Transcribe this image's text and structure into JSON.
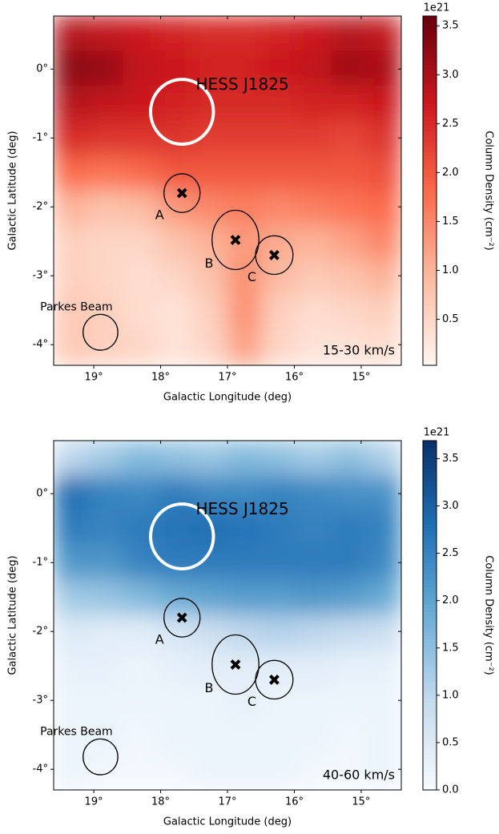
{
  "chart_data": [
    {
      "type": "heatmap",
      "xlabel": "Galactic Longitude (deg)",
      "ylabel": "Galactic Latitude (deg)",
      "xlim": [
        19.6,
        14.4
      ],
      "ylim": [
        -4.3,
        0.77
      ],
      "xticks": [
        {
          "value": 19,
          "label": "19°"
        },
        {
          "value": 18,
          "label": "18°"
        },
        {
          "value": 17,
          "label": "17°"
        },
        {
          "value": 16,
          "label": "16°"
        },
        {
          "value": 15,
          "label": "15°"
        }
      ],
      "yticks": [
        {
          "value": 0,
          "label": "0°"
        },
        {
          "value": -1,
          "label": "-1°"
        },
        {
          "value": -2,
          "label": "-2°"
        },
        {
          "value": -3,
          "label": "-3°"
        },
        {
          "value": -4,
          "label": "-4°"
        }
      ],
      "z": [
        [
          2.9,
          2.8,
          2.7,
          2.6,
          2.5,
          2.5,
          2.6,
          2.7,
          2.9,
          2.8
        ],
        [
          3.3,
          3.2,
          2.8,
          2.7,
          2.6,
          2.6,
          2.7,
          2.8,
          3.1,
          3.0
        ],
        [
          2.9,
          2.8,
          2.7,
          2.6,
          2.5,
          2.5,
          2.5,
          2.6,
          2.6,
          2.7
        ],
        [
          2.5,
          2.4,
          2.4,
          2.4,
          2.3,
          2.3,
          2.3,
          2.3,
          2.2,
          2.4
        ],
        [
          1.8,
          1.7,
          1.8,
          2.0,
          2.0,
          2.0,
          2.0,
          2.0,
          2.0,
          2.1
        ],
        [
          1.0,
          0.8,
          0.9,
          1.3,
          1.5,
          1.6,
          1.5,
          1.6,
          1.7,
          1.8
        ],
        [
          0.6,
          0.5,
          0.5,
          0.8,
          1.0,
          1.3,
          1.1,
          1.0,
          1.2,
          1.5
        ],
        [
          0.6,
          0.5,
          0.4,
          0.5,
          0.8,
          1.4,
          0.9,
          0.7,
          0.8,
          1.0
        ],
        [
          0.7,
          0.6,
          0.4,
          0.3,
          0.6,
          1.4,
          0.6,
          0.4,
          0.5,
          0.6
        ],
        [
          0.7,
          0.6,
          0.5,
          0.3,
          0.5,
          1.2,
          0.5,
          0.3,
          0.3,
          0.4
        ]
      ],
      "colors": [
        "#fff5f0",
        "#fcbba1",
        "#fb6a4a",
        "#cb181d",
        "#67000d"
      ],
      "clim": [
        0.03,
        3.6
      ],
      "cticks": [
        0.5,
        {
          "value": 1,
          "label": "1.0"
        },
        1.5,
        {
          "value": 2,
          "label": "2.0"
        },
        2.5,
        {
          "value": 3,
          "label": "3.0"
        },
        3.5
      ],
      "colorbar_label": "Column Density (cm⁻²)",
      "colorbar_offset": "1e21",
      "annotation": "15-30 km/s",
      "regions": [
        {
          "label": "HESS J1825",
          "x": 17.68,
          "y": -0.62,
          "rx": 0.47,
          "ry": 0.47,
          "color": "#ffffff"
        },
        {
          "label": "A",
          "x": 17.68,
          "y": -1.8,
          "rx": 0.27,
          "ry": 0.28,
          "color": "#000000",
          "marker": true
        },
        {
          "label": "B",
          "x": 16.88,
          "y": -2.48,
          "rx": 0.35,
          "ry": 0.43,
          "color": "#000000",
          "marker": true
        },
        {
          "label": "C",
          "x": 16.3,
          "y": -2.7,
          "rx": 0.28,
          "ry": 0.28,
          "color": "#000000",
          "marker": true
        },
        {
          "label": "Parkes Beam",
          "x": 18.9,
          "y": -3.82,
          "rx": 0.26,
          "ry": 0.26,
          "color": "#000000"
        }
      ]
    },
    {
      "type": "heatmap",
      "xlabel": "Galactic Longitude (deg)",
      "ylabel": "Galactic Latitude (deg)",
      "xlim": [
        19.6,
        14.4
      ],
      "ylim": [
        -4.3,
        0.77
      ],
      "xticks": [
        {
          "value": 19,
          "label": "19°"
        },
        {
          "value": 18,
          "label": "18°"
        },
        {
          "value": 17,
          "label": "17°"
        },
        {
          "value": 16,
          "label": "16°"
        },
        {
          "value": 15,
          "label": "15°"
        }
      ],
      "yticks": [
        {
          "value": 0,
          "label": "0°"
        },
        {
          "value": -1,
          "label": "-1°"
        },
        {
          "value": -2,
          "label": "-2°"
        },
        {
          "value": -3,
          "label": "-3°"
        },
        {
          "value": -4,
          "label": "-4°"
        }
      ],
      "z": [
        [
          1.0,
          1.3,
          1.6,
          1.5,
          1.4,
          1.6,
          1.5,
          1.3,
          1.5,
          1.2
        ],
        [
          2.8,
          2.5,
          2.4,
          2.6,
          2.4,
          2.4,
          2.5,
          2.4,
          2.3,
          2.3
        ],
        [
          2.6,
          2.5,
          2.6,
          2.7,
          2.8,
          2.7,
          2.6,
          2.5,
          2.6,
          2.5
        ],
        [
          2.2,
          2.2,
          2.5,
          2.6,
          2.6,
          2.6,
          2.6,
          2.6,
          2.6,
          2.4
        ],
        [
          1.3,
          1.4,
          1.6,
          1.9,
          2.0,
          2.1,
          2.1,
          2.2,
          2.1,
          1.9
        ],
        [
          0.5,
          0.4,
          0.4,
          0.6,
          0.8,
          1.0,
          1.1,
          1.0,
          0.9,
          0.8
        ],
        [
          0.3,
          0.3,
          0.2,
          0.3,
          0.4,
          0.4,
          0.4,
          0.4,
          0.3,
          0.3
        ],
        [
          0.2,
          0.2,
          0.2,
          0.2,
          0.2,
          0.3,
          0.2,
          0.2,
          0.2,
          0.2
        ],
        [
          0.2,
          0.2,
          0.1,
          0.2,
          0.2,
          0.2,
          0.2,
          0.2,
          0.1,
          0.2
        ],
        [
          0.2,
          0.1,
          0.1,
          0.1,
          0.2,
          0.2,
          0.2,
          0.1,
          0.1,
          0.2
        ]
      ],
      "colors": [
        "#f7fbff",
        "#c6dbef",
        "#6baed6",
        "#2171b5",
        "#08306b"
      ],
      "clim": [
        0,
        3.69
      ],
      "cticks": [
        {
          "value": 0,
          "label": "0.0"
        },
        0.5,
        {
          "value": 1,
          "label": "1.0"
        },
        1.5,
        {
          "value": 2,
          "label": "2.0"
        },
        2.5,
        {
          "value": 3,
          "label": "3.0"
        },
        3.5
      ],
      "colorbar_label": "Column Density (cm⁻²)",
      "colorbar_offset": "1e21",
      "annotation": "40-60 km/s",
      "regions": [
        {
          "label": "HESS J1825",
          "x": 17.68,
          "y": -0.62,
          "rx": 0.47,
          "ry": 0.47,
          "color": "#ffffff"
        },
        {
          "label": "A",
          "x": 17.68,
          "y": -1.8,
          "rx": 0.27,
          "ry": 0.28,
          "color": "#000000",
          "marker": true
        },
        {
          "label": "B",
          "x": 16.88,
          "y": -2.48,
          "rx": 0.35,
          "ry": 0.43,
          "color": "#000000",
          "marker": true
        },
        {
          "label": "C",
          "x": 16.3,
          "y": -2.7,
          "rx": 0.28,
          "ry": 0.28,
          "color": "#000000",
          "marker": true
        },
        {
          "label": "Parkes Beam",
          "x": 18.9,
          "y": -3.82,
          "rx": 0.26,
          "ry": 0.26,
          "color": "#000000"
        }
      ]
    }
  ]
}
